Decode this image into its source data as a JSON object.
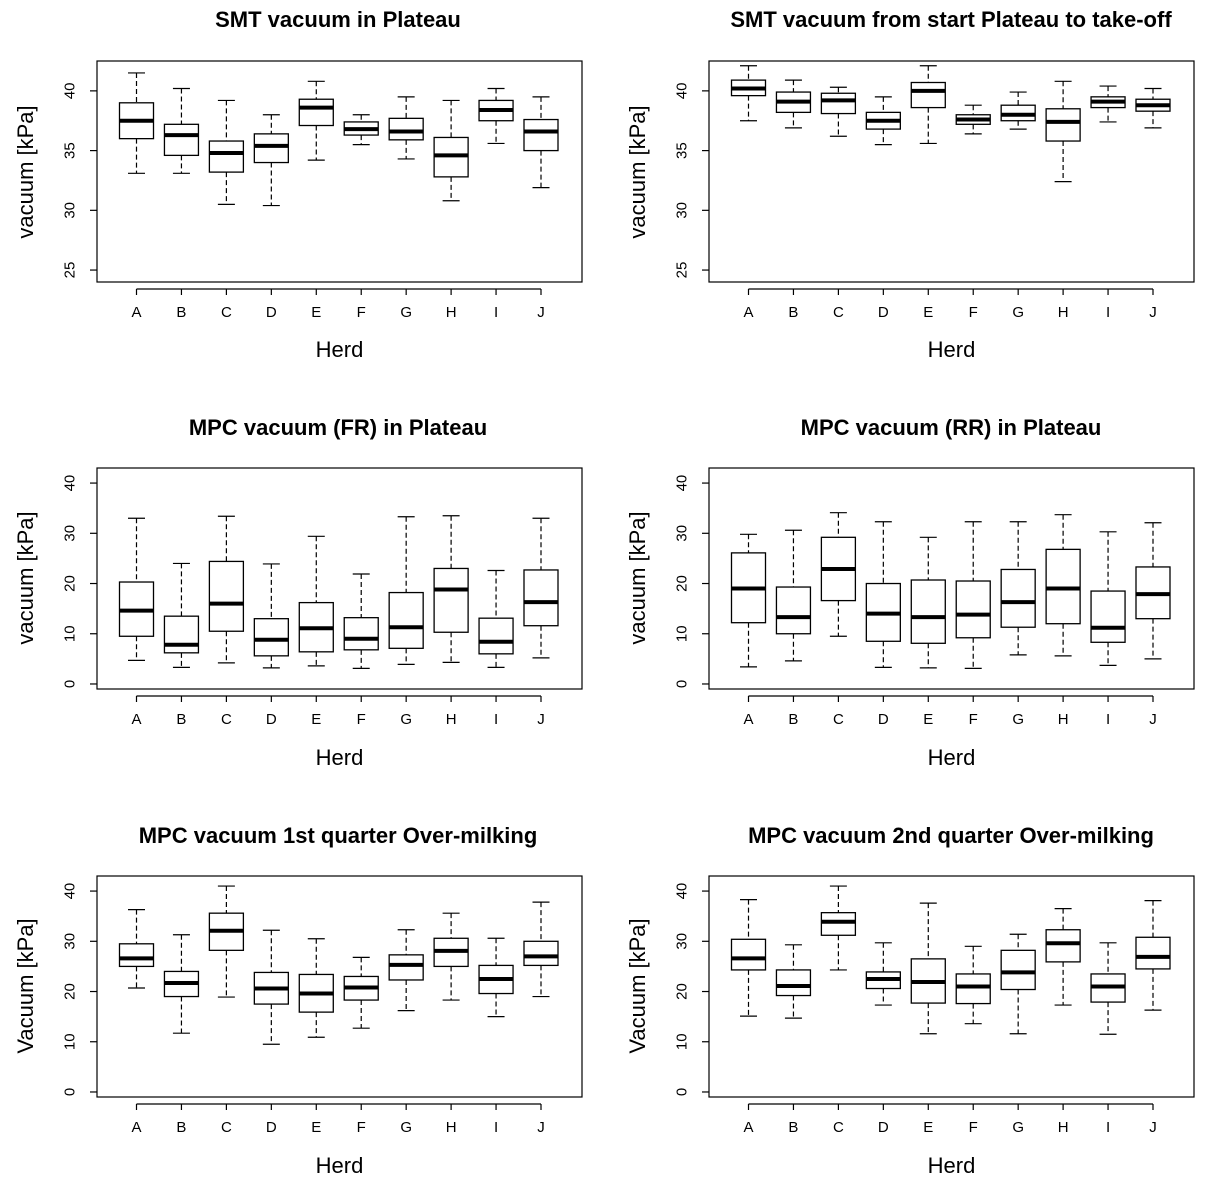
{
  "chart_data": [
    {
      "type": "boxplot",
      "title": "SMT vacuum in Plateau",
      "xlabel": "Herd",
      "ylabel": "vacuum [kPa]",
      "ylim": [
        24,
        42.5
      ],
      "yticks": [
        25,
        30,
        35,
        40
      ],
      "categories": [
        "A",
        "B",
        "C",
        "D",
        "E",
        "F",
        "G",
        "H",
        "I",
        "J"
      ],
      "boxes": [
        {
          "min": 33.1,
          "q1": 36.0,
          "median": 37.5,
          "q3": 39.0,
          "max": 41.5
        },
        {
          "min": 33.1,
          "q1": 34.6,
          "median": 36.3,
          "q3": 37.2,
          "max": 40.2
        },
        {
          "min": 30.5,
          "q1": 33.2,
          "median": 34.8,
          "q3": 35.8,
          "max": 39.2
        },
        {
          "min": 30.4,
          "q1": 34.0,
          "median": 35.4,
          "q3": 36.4,
          "max": 38.0
        },
        {
          "min": 34.2,
          "q1": 37.1,
          "median": 38.6,
          "q3": 39.3,
          "max": 40.8
        },
        {
          "min": 35.5,
          "q1": 36.3,
          "median": 36.8,
          "q3": 37.4,
          "max": 38.0
        },
        {
          "min": 34.3,
          "q1": 35.9,
          "median": 36.6,
          "q3": 37.7,
          "max": 39.5
        },
        {
          "min": 30.8,
          "q1": 32.8,
          "median": 34.6,
          "q3": 36.1,
          "max": 39.2
        },
        {
          "min": 35.6,
          "q1": 37.5,
          "median": 38.4,
          "q3": 39.2,
          "max": 40.2
        },
        {
          "min": 31.9,
          "q1": 35.0,
          "median": 36.6,
          "q3": 37.6,
          "max": 39.5
        }
      ]
    },
    {
      "type": "boxplot",
      "title": "SMT vacuum from start Plateau to take-off",
      "xlabel": "Herd",
      "ylabel": "vacuum [kPa]",
      "ylim": [
        24,
        42.5
      ],
      "yticks": [
        25,
        30,
        35,
        40
      ],
      "categories": [
        "A",
        "B",
        "C",
        "D",
        "E",
        "F",
        "G",
        "H",
        "I",
        "J"
      ],
      "boxes": [
        {
          "min": 37.5,
          "q1": 39.6,
          "median": 40.2,
          "q3": 40.9,
          "max": 42.1
        },
        {
          "min": 36.9,
          "q1": 38.2,
          "median": 39.1,
          "q3": 39.9,
          "max": 40.9
        },
        {
          "min": 36.2,
          "q1": 38.1,
          "median": 39.2,
          "q3": 39.8,
          "max": 40.3
        },
        {
          "min": 35.5,
          "q1": 36.8,
          "median": 37.5,
          "q3": 38.2,
          "max": 39.5
        },
        {
          "min": 35.6,
          "q1": 38.6,
          "median": 40.0,
          "q3": 40.7,
          "max": 42.1
        },
        {
          "min": 36.4,
          "q1": 37.2,
          "median": 37.6,
          "q3": 38.0,
          "max": 38.8
        },
        {
          "min": 36.8,
          "q1": 37.5,
          "median": 38.0,
          "q3": 38.8,
          "max": 39.9
        },
        {
          "min": 32.4,
          "q1": 35.8,
          "median": 37.4,
          "q3": 38.5,
          "max": 40.8
        },
        {
          "min": 37.4,
          "q1": 38.6,
          "median": 39.1,
          "q3": 39.5,
          "max": 40.4
        },
        {
          "min": 36.9,
          "q1": 38.3,
          "median": 38.8,
          "q3": 39.3,
          "max": 40.2
        }
      ]
    },
    {
      "type": "boxplot",
      "title": "MPC vacuum (FR) in Plateau",
      "xlabel": "Herd",
      "ylabel": "vacuum [kPa]",
      "ylim": [
        -1,
        43
      ],
      "yticks": [
        0,
        10,
        20,
        30,
        40
      ],
      "categories": [
        "A",
        "B",
        "C",
        "D",
        "E",
        "F",
        "G",
        "H",
        "I",
        "J"
      ],
      "boxes": [
        {
          "min": 4.7,
          "q1": 9.5,
          "median": 14.6,
          "q3": 20.3,
          "max": 33.0
        },
        {
          "min": 3.3,
          "q1": 6.2,
          "median": 7.8,
          "q3": 13.5,
          "max": 24.0
        },
        {
          "min": 4.2,
          "q1": 10.5,
          "median": 16.0,
          "q3": 24.4,
          "max": 33.4
        },
        {
          "min": 3.2,
          "q1": 5.6,
          "median": 8.8,
          "q3": 13.0,
          "max": 23.9
        },
        {
          "min": 3.6,
          "q1": 6.4,
          "median": 11.1,
          "q3": 16.2,
          "max": 29.4
        },
        {
          "min": 3.1,
          "q1": 6.8,
          "median": 9.0,
          "q3": 13.2,
          "max": 21.9
        },
        {
          "min": 3.9,
          "q1": 7.1,
          "median": 11.3,
          "q3": 18.2,
          "max": 33.3
        },
        {
          "min": 4.3,
          "q1": 10.3,
          "median": 18.8,
          "q3": 23.0,
          "max": 33.5
        },
        {
          "min": 3.3,
          "q1": 6.0,
          "median": 8.4,
          "q3": 13.1,
          "max": 22.6
        },
        {
          "min": 5.2,
          "q1": 11.6,
          "median": 16.3,
          "q3": 22.7,
          "max": 33.0
        }
      ]
    },
    {
      "type": "boxplot",
      "title": "MPC vacuum (RR) in Plateau",
      "xlabel": "Herd",
      "ylabel": "vacuum [kPa]",
      "ylim": [
        -1,
        43
      ],
      "yticks": [
        0,
        10,
        20,
        30,
        40
      ],
      "categories": [
        "A",
        "B",
        "C",
        "D",
        "E",
        "F",
        "G",
        "H",
        "I",
        "J"
      ],
      "boxes": [
        {
          "min": 3.4,
          "q1": 12.2,
          "median": 19.0,
          "q3": 26.1,
          "max": 29.8
        },
        {
          "min": 4.6,
          "q1": 10.0,
          "median": 13.3,
          "q3": 19.3,
          "max": 30.6
        },
        {
          "min": 9.5,
          "q1": 16.6,
          "median": 22.9,
          "q3": 29.2,
          "max": 34.1
        },
        {
          "min": 3.3,
          "q1": 8.5,
          "median": 14.0,
          "q3": 20.0,
          "max": 32.3
        },
        {
          "min": 3.2,
          "q1": 8.1,
          "median": 13.3,
          "q3": 20.7,
          "max": 29.2
        },
        {
          "min": 3.1,
          "q1": 9.2,
          "median": 13.8,
          "q3": 20.5,
          "max": 32.3
        },
        {
          "min": 5.8,
          "q1": 11.3,
          "median": 16.3,
          "q3": 22.8,
          "max": 32.3
        },
        {
          "min": 5.6,
          "q1": 12.0,
          "median": 19.0,
          "q3": 26.8,
          "max": 33.7
        },
        {
          "min": 3.7,
          "q1": 8.3,
          "median": 11.2,
          "q3": 18.5,
          "max": 30.3
        },
        {
          "min": 5.0,
          "q1": 13.0,
          "median": 17.9,
          "q3": 23.3,
          "max": 32.1
        }
      ]
    },
    {
      "type": "boxplot",
      "title": "MPC vacuum 1st quarter Over-milking",
      "xlabel": "Herd",
      "ylabel": "Vacuum [kPa]",
      "ylim": [
        -1,
        43
      ],
      "yticks": [
        0,
        10,
        20,
        30,
        40
      ],
      "categories": [
        "A",
        "B",
        "C",
        "D",
        "E",
        "F",
        "G",
        "H",
        "I",
        "J"
      ],
      "boxes": [
        {
          "min": 20.7,
          "q1": 25.0,
          "median": 26.6,
          "q3": 29.5,
          "max": 36.3
        },
        {
          "min": 11.7,
          "q1": 19.0,
          "median": 21.7,
          "q3": 24.0,
          "max": 31.3
        },
        {
          "min": 18.9,
          "q1": 28.2,
          "median": 32.1,
          "q3": 35.6,
          "max": 41.0
        },
        {
          "min": 9.5,
          "q1": 17.5,
          "median": 20.6,
          "q3": 23.8,
          "max": 32.2
        },
        {
          "min": 10.9,
          "q1": 15.9,
          "median": 19.6,
          "q3": 23.4,
          "max": 30.5
        },
        {
          "min": 12.7,
          "q1": 18.3,
          "median": 20.8,
          "q3": 23.0,
          "max": 26.8
        },
        {
          "min": 16.2,
          "q1": 22.3,
          "median": 25.3,
          "q3": 27.3,
          "max": 32.3
        },
        {
          "min": 18.3,
          "q1": 25.0,
          "median": 28.1,
          "q3": 30.6,
          "max": 35.6
        },
        {
          "min": 15.0,
          "q1": 19.6,
          "median": 22.5,
          "q3": 25.2,
          "max": 30.6
        },
        {
          "min": 19.0,
          "q1": 25.2,
          "median": 27.0,
          "q3": 30.0,
          "max": 37.8
        }
      ]
    },
    {
      "type": "boxplot",
      "title": "MPC vacuum 2nd quarter Over-milking",
      "xlabel": "Herd",
      "ylabel": "Vacuum [kPa]",
      "ylim": [
        -1,
        43
      ],
      "yticks": [
        0,
        10,
        20,
        30,
        40
      ],
      "categories": [
        "A",
        "B",
        "C",
        "D",
        "E",
        "F",
        "G",
        "H",
        "I",
        "J"
      ],
      "boxes": [
        {
          "min": 15.1,
          "q1": 24.3,
          "median": 26.6,
          "q3": 30.4,
          "max": 38.3
        },
        {
          "min": 14.7,
          "q1": 19.2,
          "median": 21.1,
          "q3": 24.3,
          "max": 29.3
        },
        {
          "min": 24.3,
          "q1": 31.2,
          "median": 33.9,
          "q3": 35.7,
          "max": 41.0
        },
        {
          "min": 17.3,
          "q1": 20.6,
          "median": 22.5,
          "q3": 23.9,
          "max": 29.7
        },
        {
          "min": 11.6,
          "q1": 17.7,
          "median": 21.9,
          "q3": 26.5,
          "max": 37.6
        },
        {
          "min": 13.6,
          "q1": 17.6,
          "median": 21.0,
          "q3": 23.5,
          "max": 29.0
        },
        {
          "min": 11.6,
          "q1": 20.4,
          "median": 23.8,
          "q3": 28.2,
          "max": 31.4
        },
        {
          "min": 17.3,
          "q1": 25.9,
          "median": 29.6,
          "q3": 32.3,
          "max": 36.5
        },
        {
          "min": 11.5,
          "q1": 17.9,
          "median": 21.0,
          "q3": 23.5,
          "max": 29.7
        },
        {
          "min": 16.3,
          "q1": 24.5,
          "median": 26.9,
          "q3": 30.8,
          "max": 38.1
        }
      ]
    }
  ]
}
